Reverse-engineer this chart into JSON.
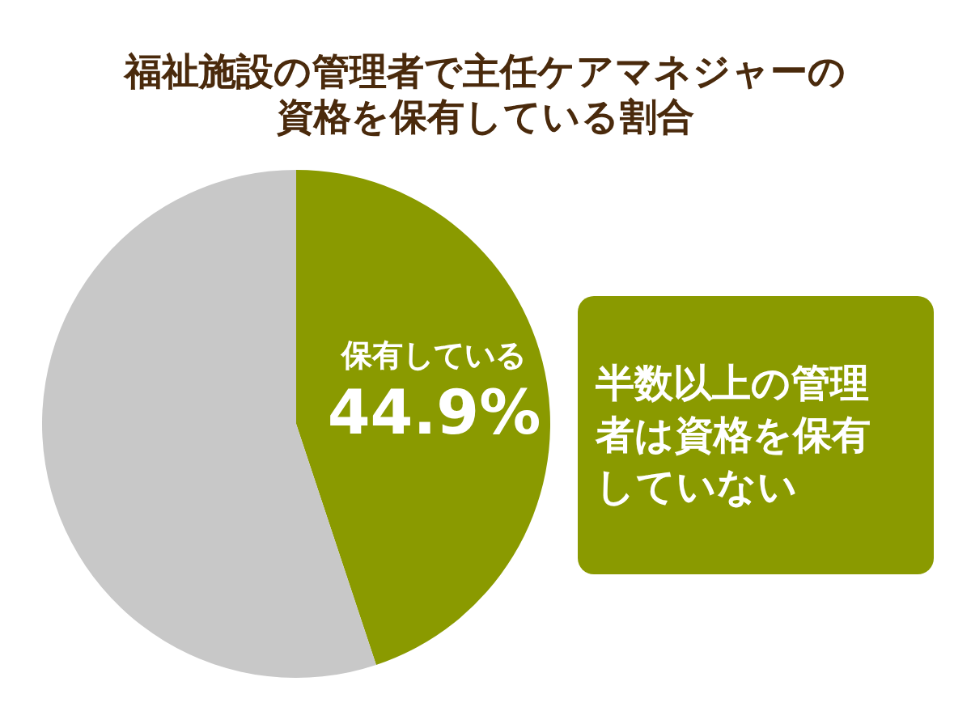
{
  "chart_data": {
    "type": "pie",
    "title": "福祉施設の管理者で主任ケアマネジャーの資格を保有している割合",
    "categories": [
      "保有している",
      null
    ],
    "values": [
      44.9,
      55.1
    ],
    "colors": [
      "#8a9a00",
      "#c8c8c8"
    ],
    "value_labels": [
      "44.9%",
      null
    ],
    "annotations": [
      "半数以上の管理者は資格を保有していない"
    ]
  }
}
